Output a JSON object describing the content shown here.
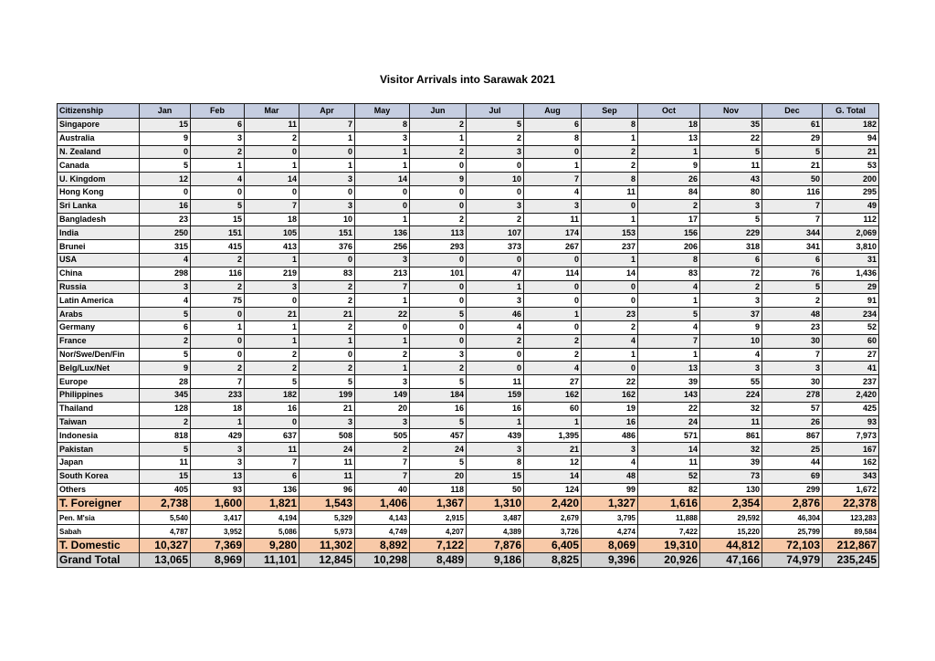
{
  "title": "Visitor Arrivals into Sarawak 2021",
  "headers": [
    "Citizenship",
    "Jan",
    "Feb",
    "Mar",
    "Apr",
    "May",
    "Jun",
    "Jul",
    "Aug",
    "Sep",
    "Oct",
    "Nov",
    "Dec",
    "G. Total"
  ],
  "rows": [
    {
      "name": "Singapore",
      "values": [
        "15",
        "6",
        "11",
        "7",
        "8",
        "2",
        "5",
        "6",
        "8",
        "18",
        "35",
        "61",
        "182"
      ]
    },
    {
      "name": "Australia",
      "values": [
        "9",
        "3",
        "2",
        "1",
        "3",
        "1",
        "2",
        "8",
        "1",
        "13",
        "22",
        "29",
        "94"
      ]
    },
    {
      "name": "N. Zealand",
      "values": [
        "0",
        "2",
        "0",
        "0",
        "1",
        "2",
        "3",
        "0",
        "2",
        "1",
        "5",
        "5",
        "21"
      ]
    },
    {
      "name": "Canada",
      "values": [
        "5",
        "1",
        "1",
        "1",
        "1",
        "0",
        "0",
        "1",
        "2",
        "9",
        "11",
        "21",
        "53"
      ]
    },
    {
      "name": "U. Kingdom",
      "values": [
        "12",
        "4",
        "14",
        "3",
        "14",
        "9",
        "10",
        "7",
        "8",
        "26",
        "43",
        "50",
        "200"
      ]
    },
    {
      "name": "Hong Kong",
      "values": [
        "0",
        "0",
        "0",
        "0",
        "0",
        "0",
        "0",
        "4",
        "11",
        "84",
        "80",
        "116",
        "295"
      ]
    },
    {
      "name": "Sri Lanka",
      "values": [
        "16",
        "5",
        "7",
        "3",
        "0",
        "0",
        "3",
        "3",
        "0",
        "2",
        "3",
        "7",
        "49"
      ]
    },
    {
      "name": "Bangladesh",
      "values": [
        "23",
        "15",
        "18",
        "10",
        "1",
        "2",
        "2",
        "11",
        "1",
        "17",
        "5",
        "7",
        "112"
      ]
    },
    {
      "name": "India",
      "values": [
        "250",
        "151",
        "105",
        "151",
        "136",
        "113",
        "107",
        "174",
        "153",
        "156",
        "229",
        "344",
        "2,069"
      ]
    },
    {
      "name": "Brunei",
      "values": [
        "315",
        "415",
        "413",
        "376",
        "256",
        "293",
        "373",
        "267",
        "237",
        "206",
        "318",
        "341",
        "3,810"
      ]
    },
    {
      "name": "USA",
      "values": [
        "4",
        "2",
        "1",
        "0",
        "3",
        "0",
        "0",
        "0",
        "1",
        "8",
        "6",
        "6",
        "31"
      ]
    },
    {
      "name": "China",
      "values": [
        "298",
        "116",
        "219",
        "83",
        "213",
        "101",
        "47",
        "114",
        "14",
        "83",
        "72",
        "76",
        "1,436"
      ]
    },
    {
      "name": "Russia",
      "values": [
        "3",
        "2",
        "3",
        "2",
        "7",
        "0",
        "1",
        "0",
        "0",
        "4",
        "2",
        "5",
        "29"
      ]
    },
    {
      "name": "Latin America",
      "values": [
        "4",
        "75",
        "0",
        "2",
        "1",
        "0",
        "3",
        "0",
        "0",
        "1",
        "3",
        "2",
        "91"
      ]
    },
    {
      "name": "Arabs",
      "values": [
        "5",
        "0",
        "21",
        "21",
        "22",
        "5",
        "46",
        "1",
        "23",
        "5",
        "37",
        "48",
        "234"
      ]
    },
    {
      "name": "Germany",
      "values": [
        "6",
        "1",
        "1",
        "2",
        "0",
        "0",
        "4",
        "0",
        "2",
        "4",
        "9",
        "23",
        "52"
      ]
    },
    {
      "name": "France",
      "values": [
        "2",
        "0",
        "1",
        "1",
        "1",
        "0",
        "2",
        "2",
        "4",
        "7",
        "10",
        "30",
        "60"
      ]
    },
    {
      "name": "Nor/Swe/Den/Fin",
      "values": [
        "5",
        "0",
        "2",
        "0",
        "2",
        "3",
        "0",
        "2",
        "1",
        "1",
        "4",
        "7",
        "27"
      ]
    },
    {
      "name": "Belg/Lux/Net",
      "values": [
        "9",
        "2",
        "2",
        "2",
        "1",
        "2",
        "0",
        "4",
        "0",
        "13",
        "3",
        "3",
        "41"
      ]
    },
    {
      "name": "Europe",
      "values": [
        "28",
        "7",
        "5",
        "5",
        "3",
        "5",
        "11",
        "27",
        "22",
        "39",
        "55",
        "30",
        "237"
      ]
    },
    {
      "name": "Philippines",
      "values": [
        "345",
        "233",
        "182",
        "199",
        "149",
        "184",
        "159",
        "162",
        "162",
        "143",
        "224",
        "278",
        "2,420"
      ]
    },
    {
      "name": "Thailand",
      "values": [
        "128",
        "18",
        "16",
        "21",
        "20",
        "16",
        "16",
        "60",
        "19",
        "22",
        "32",
        "57",
        "425"
      ]
    },
    {
      "name": "Taiwan",
      "values": [
        "2",
        "1",
        "0",
        "3",
        "3",
        "5",
        "1",
        "1",
        "16",
        "24",
        "11",
        "26",
        "93"
      ]
    },
    {
      "name": "Indonesia",
      "values": [
        "818",
        "429",
        "637",
        "508",
        "505",
        "457",
        "439",
        "1,395",
        "486",
        "571",
        "861",
        "867",
        "7,973"
      ]
    },
    {
      "name": "Pakistan",
      "values": [
        "5",
        "3",
        "11",
        "24",
        "2",
        "24",
        "3",
        "21",
        "3",
        "14",
        "32",
        "25",
        "167"
      ]
    },
    {
      "name": "Japan",
      "values": [
        "11",
        "3",
        "7",
        "11",
        "7",
        "5",
        "8",
        "12",
        "4",
        "11",
        "39",
        "44",
        "162"
      ]
    },
    {
      "name": "South Korea",
      "values": [
        "15",
        "13",
        "6",
        "11",
        "7",
        "20",
        "15",
        "14",
        "48",
        "52",
        "73",
        "69",
        "343"
      ]
    },
    {
      "name": "Others",
      "values": [
        "405",
        "93",
        "136",
        "96",
        "40",
        "118",
        "50",
        "124",
        "99",
        "82",
        "130",
        "299",
        "1,672"
      ]
    }
  ],
  "total_foreigner": {
    "name": "T. Foreigner",
    "values": [
      "2,738",
      "1,600",
      "1,821",
      "1,543",
      "1,406",
      "1,367",
      "1,310",
      "2,420",
      "1,327",
      "1,616",
      "2,354",
      "2,876",
      "22,378"
    ]
  },
  "domestic": [
    {
      "name": "Pen. M'sia",
      "values": [
        "5,540",
        "3,417",
        "4,194",
        "5,329",
        "4,143",
        "2,915",
        "3,487",
        "2,679",
        "3,795",
        "11,888",
        "29,592",
        "46,304",
        "123,283"
      ]
    },
    {
      "name": "Sabah",
      "values": [
        "4,787",
        "3,952",
        "5,086",
        "5,973",
        "4,749",
        "4,207",
        "4,389",
        "3,726",
        "4,274",
        "7,422",
        "15,220",
        "25,799",
        "89,584"
      ]
    }
  ],
  "total_domestic": {
    "name": "T. Domestic",
    "values": [
      "10,327",
      "7,369",
      "9,280",
      "11,302",
      "8,892",
      "7,122",
      "7,876",
      "6,405",
      "8,069",
      "19,310",
      "44,812",
      "72,103",
      "212,867"
    ]
  },
  "grand_total": {
    "name": "Grand Total",
    "values": [
      "13,065",
      "8,969",
      "11,101",
      "12,845",
      "10,298",
      "8,489",
      "9,186",
      "8,825",
      "9,396",
      "20,926",
      "47,166",
      "74,979",
      "235,245"
    ]
  },
  "colors": {
    "header_bg": "#c5cde0",
    "subtotal_bg": "#f8c9a8",
    "grand_total_bg": "#d3d3d3",
    "stripe_bg": "#ececec"
  }
}
